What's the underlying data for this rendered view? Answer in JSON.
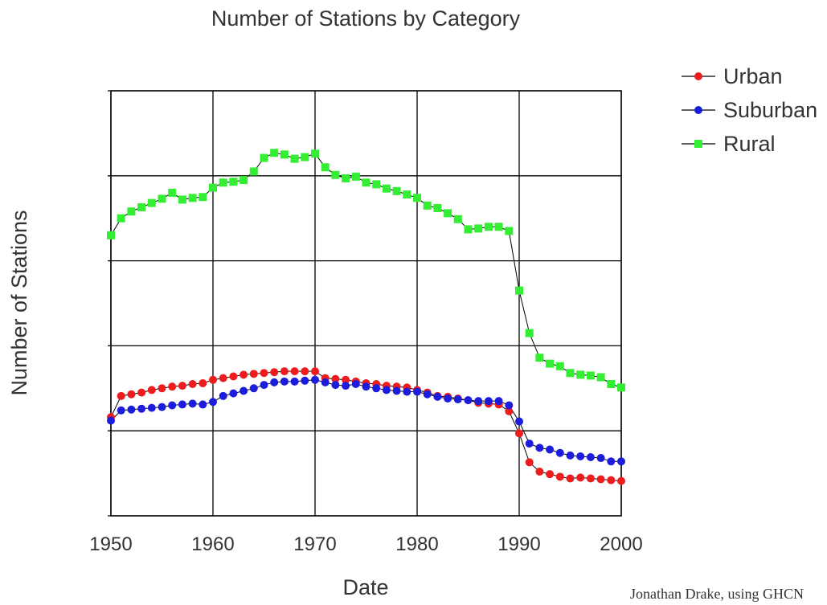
{
  "chart_data": {
    "type": "line",
    "title": "Number of Stations by Category",
    "xlabel": "Date",
    "ylabel": "Number of Stations",
    "xlim": [
      1950,
      2000
    ],
    "ylim": [
      0,
      5
    ],
    "x_ticks": [
      "1950",
      "1960",
      "1970",
      "1980",
      "1990",
      "2000"
    ],
    "grid": true,
    "legend_position": "top-right",
    "credit": "Jonathan Drake, using GHCN",
    "x": [
      1950,
      1951,
      1952,
      1953,
      1954,
      1955,
      1956,
      1957,
      1958,
      1959,
      1960,
      1961,
      1962,
      1963,
      1964,
      1965,
      1966,
      1967,
      1968,
      1969,
      1970,
      1971,
      1972,
      1973,
      1974,
      1975,
      1976,
      1977,
      1978,
      1979,
      1980,
      1981,
      1982,
      1983,
      1984,
      1985,
      1986,
      1987,
      1988,
      1989,
      1990,
      1991,
      1992,
      1993,
      1994,
      1995,
      1996,
      1997,
      1998,
      1999,
      2000
    ],
    "series": [
      {
        "name": "Urban",
        "color": "#ee1c1c",
        "marker": "circle",
        "values": [
          1.16,
          1.41,
          1.43,
          1.45,
          1.48,
          1.5,
          1.52,
          1.53,
          1.55,
          1.56,
          1.6,
          1.62,
          1.64,
          1.66,
          1.67,
          1.68,
          1.69,
          1.7,
          1.7,
          1.7,
          1.7,
          1.62,
          1.61,
          1.6,
          1.58,
          1.56,
          1.55,
          1.53,
          1.52,
          1.51,
          1.48,
          1.45,
          1.41,
          1.4,
          1.38,
          1.36,
          1.33,
          1.32,
          1.31,
          1.23,
          0.97,
          0.63,
          0.52,
          0.49,
          0.46,
          0.44,
          0.45,
          0.44,
          0.43,
          0.42,
          0.41
        ]
      },
      {
        "name": "Suburban",
        "color": "#1c1cdd",
        "marker": "circle",
        "values": [
          1.12,
          1.24,
          1.25,
          1.26,
          1.27,
          1.28,
          1.3,
          1.31,
          1.32,
          1.31,
          1.34,
          1.41,
          1.44,
          1.47,
          1.5,
          1.54,
          1.57,
          1.58,
          1.58,
          1.59,
          1.6,
          1.57,
          1.54,
          1.53,
          1.55,
          1.52,
          1.5,
          1.48,
          1.47,
          1.46,
          1.46,
          1.43,
          1.4,
          1.38,
          1.37,
          1.36,
          1.35,
          1.35,
          1.35,
          1.3,
          1.11,
          0.85,
          0.8,
          0.78,
          0.74,
          0.71,
          0.7,
          0.69,
          0.68,
          0.64,
          0.64
        ]
      },
      {
        "name": "Rural",
        "color": "#33ee33",
        "marker": "square",
        "values": [
          3.3,
          3.5,
          3.58,
          3.63,
          3.68,
          3.73,
          3.8,
          3.72,
          3.74,
          3.75,
          3.86,
          3.92,
          3.93,
          3.95,
          4.05,
          4.21,
          4.27,
          4.25,
          4.2,
          4.22,
          4.26,
          4.1,
          4.01,
          3.97,
          3.99,
          3.92,
          3.9,
          3.85,
          3.82,
          3.78,
          3.74,
          3.65,
          3.62,
          3.56,
          3.49,
          3.37,
          3.38,
          3.4,
          3.4,
          3.35,
          2.65,
          2.15,
          1.86,
          1.79,
          1.76,
          1.68,
          1.66,
          1.65,
          1.63,
          1.55,
          1.51
        ]
      }
    ]
  }
}
